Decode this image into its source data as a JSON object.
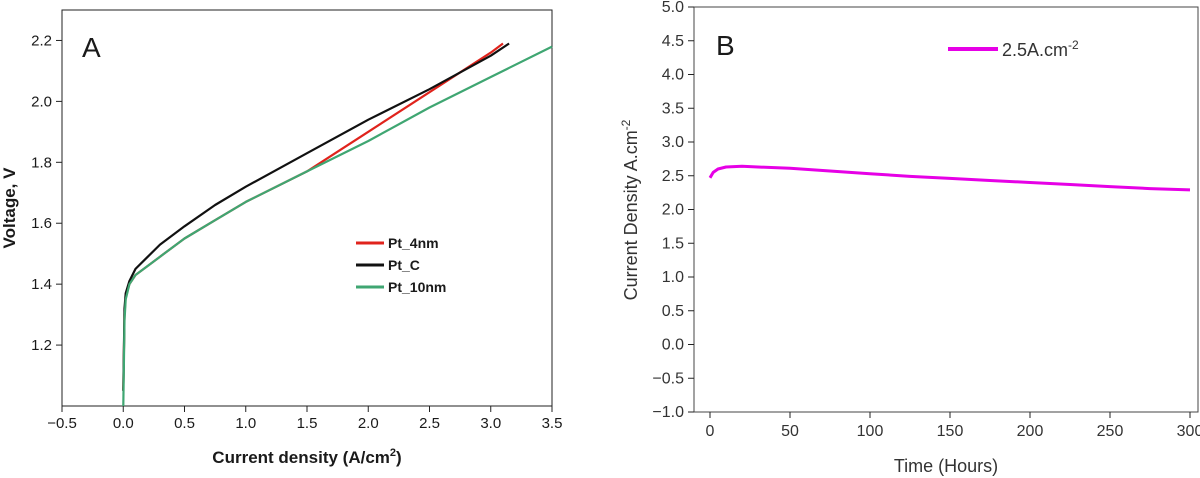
{
  "chart_data": [
    {
      "panel_label": "A",
      "type": "line",
      "xlabel": "Current density (A/cm",
      "xlabel_sup": "2",
      "xlabel_close": ")",
      "ylabel": "Voltage, V",
      "xlim": [
        -0.5,
        3.5
      ],
      "ylim": [
        1.0,
        2.3
      ],
      "x_ticks": [
        "-0.5",
        "0.0",
        "0.5",
        "1.0",
        "1.5",
        "2.0",
        "2.5",
        "3.0",
        "3.5"
      ],
      "y_ticks": [
        "1.2",
        "1.4",
        "1.6",
        "1.8",
        "2.0",
        "2.2"
      ],
      "grid": false,
      "legend_position": "center-right",
      "series": [
        {
          "name": "Pt_4nm",
          "color": "#e0231c",
          "points": [
            [
              0.0,
              1.05
            ],
            [
              0.01,
              1.3
            ],
            [
              0.02,
              1.36
            ],
            [
              0.05,
              1.4
            ],
            [
              0.1,
              1.43
            ],
            [
              0.2,
              1.46
            ],
            [
              0.3,
              1.49
            ],
            [
              0.5,
              1.55
            ],
            [
              0.75,
              1.61
            ],
            [
              1.0,
              1.67
            ],
            [
              1.5,
              1.77
            ],
            [
              2.0,
              1.9
            ],
            [
              2.5,
              2.03
            ],
            [
              3.0,
              2.16
            ],
            [
              3.1,
              2.19
            ]
          ]
        },
        {
          "name": "Pt_C",
          "color": "#111111",
          "points": [
            [
              0.0,
              1.05
            ],
            [
              0.01,
              1.32
            ],
            [
              0.02,
              1.37
            ],
            [
              0.05,
              1.41
            ],
            [
              0.1,
              1.45
            ],
            [
              0.2,
              1.49
            ],
            [
              0.3,
              1.53
            ],
            [
              0.5,
              1.59
            ],
            [
              0.75,
              1.66
            ],
            [
              1.0,
              1.72
            ],
            [
              1.5,
              1.83
            ],
            [
              2.0,
              1.94
            ],
            [
              2.5,
              2.04
            ],
            [
              3.0,
              2.15
            ],
            [
              3.15,
              2.19
            ]
          ]
        },
        {
          "name": "Pt_10nm",
          "color": "#3fa672",
          "points": [
            [
              0.0,
              1.0
            ],
            [
              0.01,
              1.28
            ],
            [
              0.02,
              1.35
            ],
            [
              0.05,
              1.4
            ],
            [
              0.1,
              1.43
            ],
            [
              0.2,
              1.46
            ],
            [
              0.3,
              1.49
            ],
            [
              0.5,
              1.55
            ],
            [
              0.75,
              1.61
            ],
            [
              1.0,
              1.67
            ],
            [
              1.5,
              1.77
            ],
            [
              2.0,
              1.87
            ],
            [
              2.5,
              1.98
            ],
            [
              3.0,
              2.08
            ],
            [
              3.5,
              2.18
            ]
          ]
        }
      ]
    },
    {
      "panel_label": "B",
      "type": "line",
      "xlabel": "Time (Hours)",
      "ylabel": "Current Density A.cm",
      "ylabel_sup": "-2",
      "xlim": [
        -10,
        305
      ],
      "ylim": [
        -1.0,
        5.0
      ],
      "x_ticks": [
        "0",
        "50",
        "100",
        "150",
        "200",
        "250",
        "300"
      ],
      "y_ticks": [
        "-1.0",
        "-0.5",
        "0.0",
        "0.5",
        "1.0",
        "1.5",
        "2.0",
        "2.5",
        "3.0",
        "3.5",
        "4.0",
        "4.5",
        "5.0"
      ],
      "grid": false,
      "legend_position": "top-right",
      "series": [
        {
          "name": "2.5A.cm",
          "name_sup": "-2",
          "color": "#e600e6",
          "points": [
            [
              0,
              2.47
            ],
            [
              2,
              2.55
            ],
            [
              5,
              2.6
            ],
            [
              10,
              2.63
            ],
            [
              20,
              2.64
            ],
            [
              30,
              2.63
            ],
            [
              50,
              2.61
            ],
            [
              75,
              2.57
            ],
            [
              100,
              2.53
            ],
            [
              125,
              2.49
            ],
            [
              150,
              2.46
            ],
            [
              175,
              2.43
            ],
            [
              200,
              2.4
            ],
            [
              225,
              2.37
            ],
            [
              250,
              2.34
            ],
            [
              275,
              2.31
            ],
            [
              300,
              2.29
            ]
          ]
        }
      ]
    }
  ]
}
